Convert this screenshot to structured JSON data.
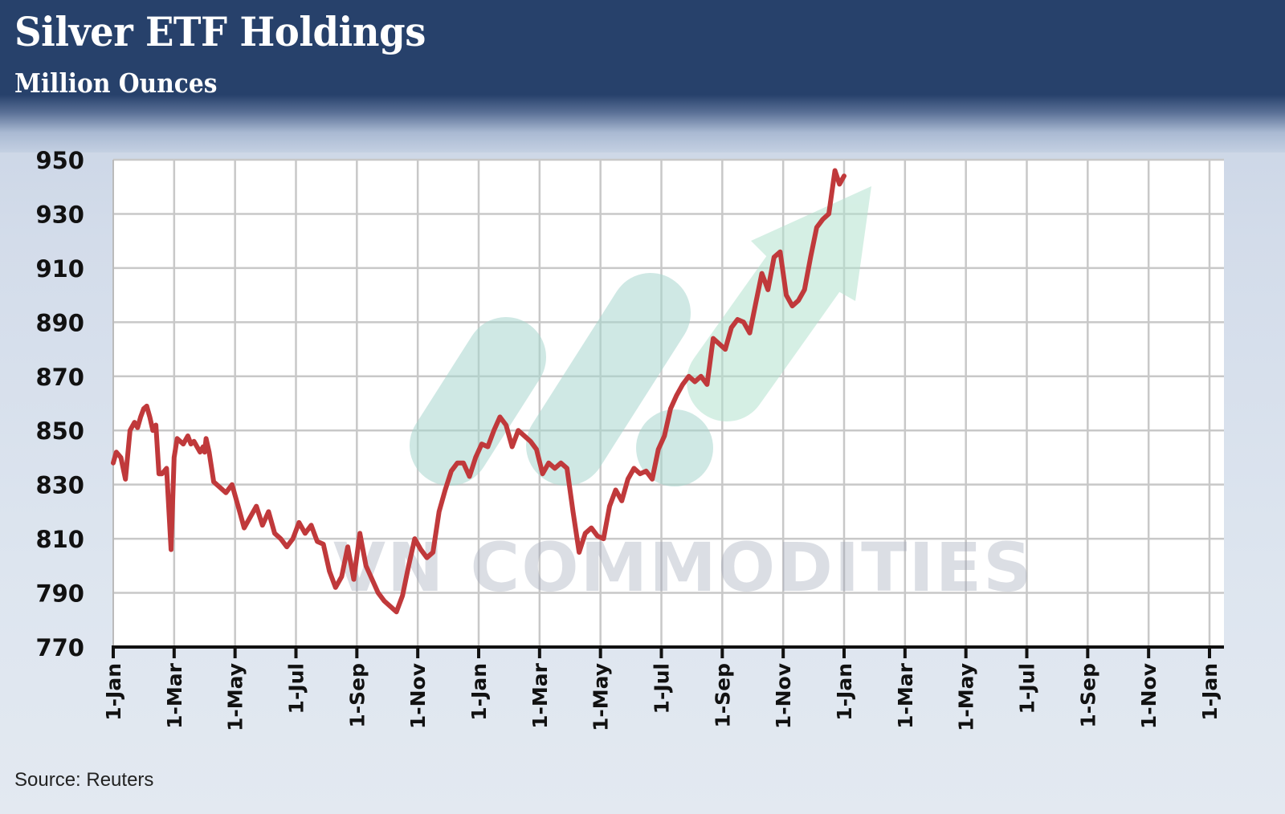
{
  "header": {
    "title": "Silver ETF Holdings",
    "subtitle": "Million Ounces"
  },
  "footer": {
    "source": "Source: Reuters"
  },
  "watermark": {
    "text": "VN COMMODITIES",
    "logo": "rising-arrow-logo"
  },
  "colors": {
    "header_bg": "#27416b",
    "line": "#c0393b",
    "grid": "#c8c8c8",
    "plot_bg": "#ffffff",
    "watermark_green": "#bfe5d6"
  },
  "chart_data": {
    "type": "line",
    "title": "Silver ETF Holdings",
    "subtitle": "Million Ounces",
    "xlabel": "",
    "ylabel": "Million Ounces",
    "ylim": [
      770,
      950
    ],
    "yticks": [
      950,
      930,
      910,
      890,
      870,
      850,
      830,
      810,
      790,
      770
    ],
    "xticks": [
      "1-Jan",
      "1-Mar",
      "1-May",
      "1-Jul",
      "1-Sep",
      "1-Nov",
      "1-Jan",
      "1-Mar",
      "1-May",
      "1-Jul",
      "1-Sep",
      "1-Nov",
      "1-Jan",
      "1-Mar",
      "1-May",
      "1-Jul",
      "1-Sep",
      "1-Nov",
      "1-Jan"
    ],
    "grid": true,
    "legend": "none",
    "source": "Reuters",
    "series": [
      {
        "name": "Silver ETF Holdings",
        "color": "#c0393b",
        "x_months": [
          0,
          0.1,
          0.25,
          0.4,
          0.55,
          0.7,
          0.8,
          0.9,
          1.0,
          1.1,
          1.2,
          1.3,
          1.4,
          1.5,
          1.6,
          1.75,
          1.9,
          2.0,
          2.1,
          2.3,
          2.45,
          2.55,
          2.65,
          2.75,
          2.85,
          2.95,
          3.0,
          3.05,
          3.15,
          3.3,
          3.5,
          3.7,
          3.9,
          4.1,
          4.3,
          4.5,
          4.7,
          4.9,
          5.1,
          5.3,
          5.5,
          5.7,
          5.9,
          6.0,
          6.1,
          6.3,
          6.5,
          6.7,
          6.9,
          7.1,
          7.3,
          7.5,
          7.7,
          7.9,
          8.1,
          8.3,
          8.5,
          8.7,
          8.9,
          9.1,
          9.3,
          9.5,
          9.7,
          9.9,
          10.1,
          10.3,
          10.5,
          10.7,
          10.9,
          11.1,
          11.3,
          11.5,
          11.7,
          11.9,
          12.1,
          12.3,
          12.5,
          12.7,
          12.9,
          13.1,
          13.3,
          13.5,
          13.7,
          13.9,
          14.1,
          14.3,
          14.5,
          14.7,
          14.9,
          15.1,
          15.3,
          15.5,
          15.7,
          15.9,
          16.1,
          16.3,
          16.5,
          16.7,
          16.9,
          17.1,
          17.3,
          17.5,
          17.7,
          17.9,
          18.1,
          18.3,
          18.5,
          18.7,
          18.9,
          19.1,
          19.3,
          19.5,
          19.7,
          19.9,
          20.1,
          20.3,
          20.5,
          20.7,
          20.9,
          21.1,
          21.3,
          21.5,
          21.7,
          21.9,
          22.1,
          22.3,
          22.5,
          22.7,
          22.9,
          23.1,
          23.3,
          23.5,
          23.7,
          23.85,
          24.0
        ],
        "values": [
          838,
          842,
          840,
          832,
          850,
          853,
          851,
          855,
          858,
          859,
          855,
          850,
          852,
          834,
          834,
          836,
          806,
          840,
          847,
          845,
          848,
          845,
          846,
          844,
          842,
          844,
          842,
          847,
          842,
          831,
          829,
          827,
          830,
          822,
          814,
          818,
          822,
          815,
          820,
          812,
          810,
          807,
          810,
          813,
          816,
          812,
          815,
          809,
          808,
          798,
          792,
          796,
          807,
          795,
          812,
          800,
          795,
          790,
          787,
          785,
          783,
          789,
          800,
          810,
          806,
          803,
          805,
          820,
          828,
          835,
          838,
          838,
          833,
          840,
          845,
          844,
          850,
          855,
          852,
          844,
          850,
          848,
          846,
          843,
          834,
          838,
          836,
          838,
          836,
          820,
          805,
          812,
          814,
          811,
          810,
          822,
          828,
          824,
          832,
          836,
          834,
          835,
          832,
          843,
          848,
          858,
          863,
          867,
          870,
          868,
          870,
          867,
          884,
          882,
          880,
          888,
          891,
          890,
          886,
          897,
          908,
          902,
          914,
          916,
          900,
          896,
          898,
          902,
          914,
          925,
          928,
          930,
          946,
          941,
          944
        ]
      }
    ]
  }
}
